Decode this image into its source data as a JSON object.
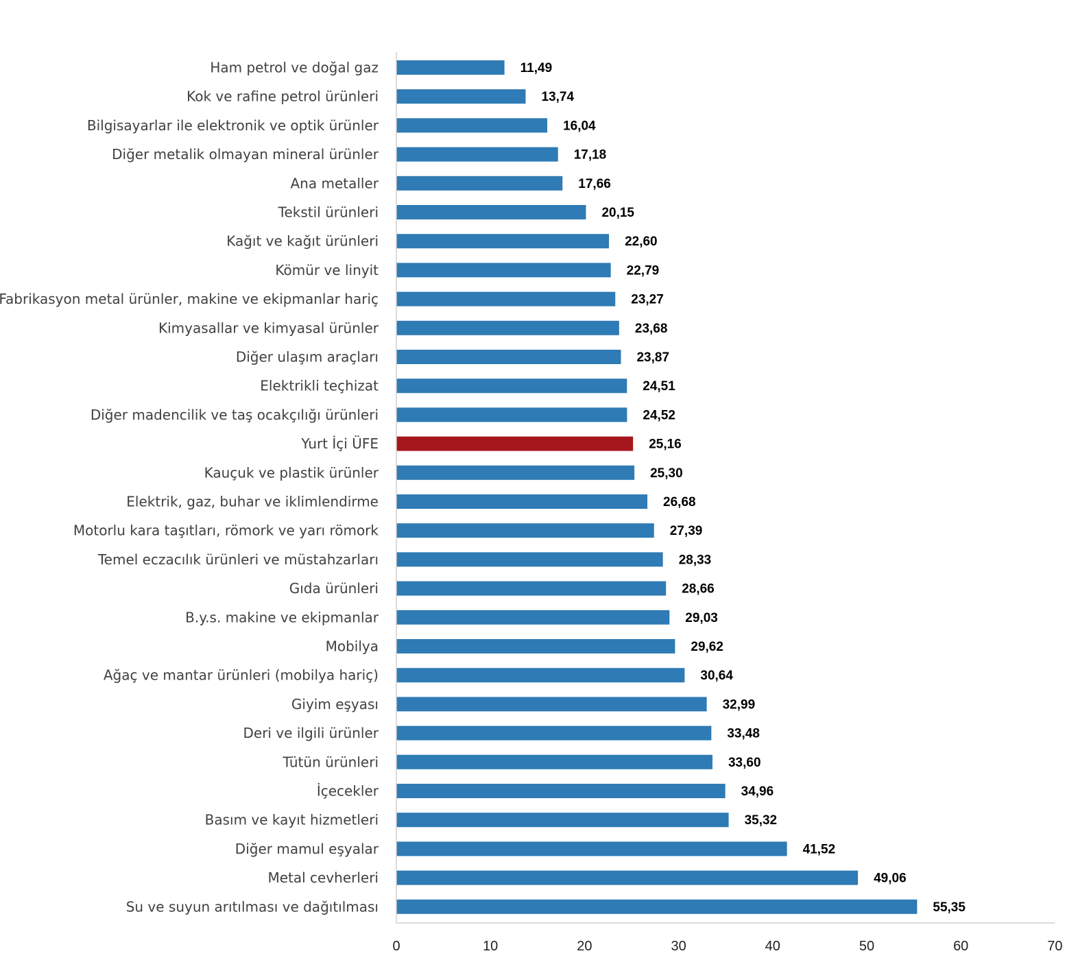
{
  "chart_data": {
    "type": "bar",
    "orientation": "horizontal",
    "title": "",
    "xlabel": "",
    "ylabel": "",
    "xlim": [
      0,
      70
    ],
    "x_ticks": [
      "0",
      "10",
      "20",
      "30",
      "40",
      "50",
      "60",
      "70"
    ],
    "grid": false,
    "legend": "none",
    "default_color": "#2e7bb5",
    "highlight_color": "#a6161d",
    "categories": [
      "Ham petrol ve doğal gaz",
      "Kok ve rafine petrol ürünleri",
      "Bilgisayarlar ile elektronik ve optik ürünler",
      "Diğer metalik olmayan mineral ürünler",
      "Ana metaller",
      "Tekstil ürünleri",
      "Kağıt ve kağıt ürünleri",
      "Kömür ve linyit",
      "Fabrikasyon metal ürünler, makine ve ekipmanlar hariç",
      "Kimyasallar ve kimyasal ürünler",
      "Diğer ulaşım araçları",
      "Elektrikli teçhizat",
      "Diğer madencilik ve taş ocakçılığı ürünleri",
      "Yurt İçi ÜFE",
      "Kauçuk ve plastik ürünler",
      "Elektrik, gaz, buhar ve iklimlendirme",
      "Motorlu kara taşıtları, römork ve yarı römork",
      "Temel eczacılık ürünleri ve müstahzarları",
      "Gıda ürünleri",
      "B.y.s. makine ve ekipmanlar",
      "Mobilya",
      "Ağaç ve mantar ürünleri (mobilya hariç)",
      "Giyim eşyası",
      "Deri ve ilgili ürünler",
      "Tütün ürünleri",
      "İçecekler",
      "Basım ve kayıt hizmetleri",
      "Diğer mamul eşyalar",
      "Metal cevherleri",
      "Su ve suyun arıtılması ve dağıtılması"
    ],
    "values": [
      11.49,
      13.74,
      16.04,
      17.18,
      17.66,
      20.15,
      22.6,
      22.79,
      23.27,
      23.68,
      23.87,
      24.51,
      24.52,
      25.16,
      25.3,
      26.68,
      27.39,
      28.33,
      28.66,
      29.03,
      29.62,
      30.64,
      32.99,
      33.48,
      33.6,
      34.96,
      35.32,
      41.52,
      49.06,
      55.35
    ],
    "value_labels": [
      "11,49",
      "13,74",
      "16,04",
      "17,18",
      "17,66",
      "20,15",
      "22,60",
      "22,79",
      "23,27",
      "23,68",
      "23,87",
      "24,51",
      "24,52",
      "25,16",
      "25,30",
      "26,68",
      "27,39",
      "28,33",
      "28,66",
      "29,03",
      "29,62",
      "30,64",
      "32,99",
      "33,48",
      "33,60",
      "34,96",
      "35,32",
      "41,52",
      "49,06",
      "55,35"
    ],
    "highlighted_category": "Yurt İçi ÜFE"
  }
}
